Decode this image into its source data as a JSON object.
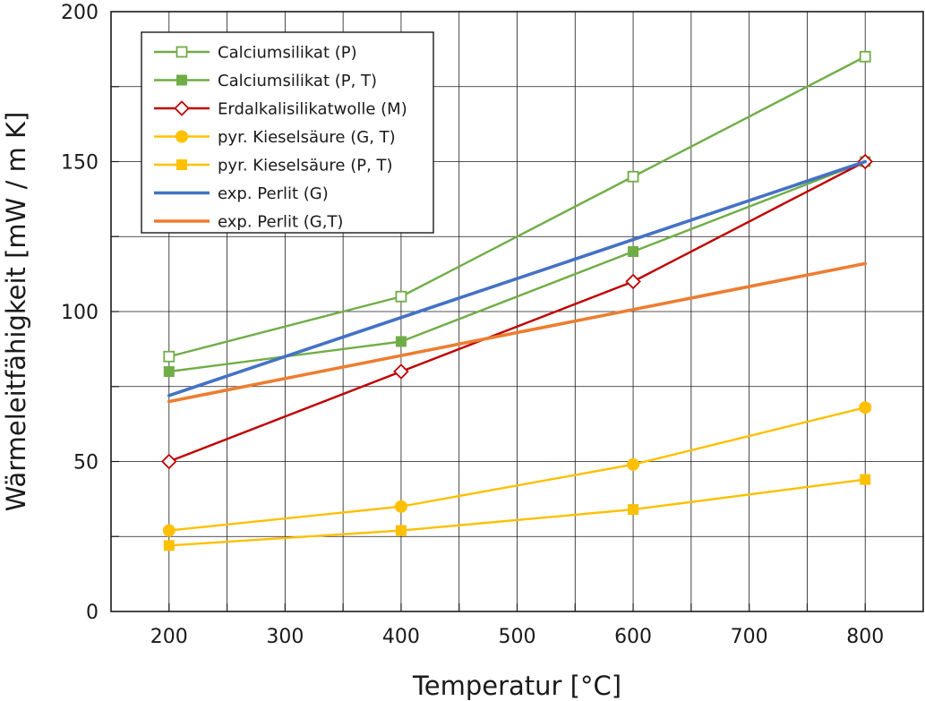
{
  "chart_data": {
    "type": "line",
    "xlabel": "Temperatur [°C]",
    "ylabel": "Wärmeleitfähigkeit [mW / m K]",
    "xlim": [
      150,
      850
    ],
    "ylim": [
      0,
      200
    ],
    "x_ticks": [
      200,
      300,
      400,
      500,
      600,
      700,
      800
    ],
    "y_ticks": [
      0,
      50,
      100,
      150,
      200
    ],
    "grid": true,
    "legend_position": "top-left",
    "series": [
      {
        "name": "Calciumsilikat (P)",
        "color": "#70ad47",
        "marker": "square-open",
        "x": [
          200,
          400,
          600,
          800
        ],
        "y": [
          85,
          105,
          145,
          185
        ]
      },
      {
        "name": "Calciumsilikat (P, T)",
        "color": "#70ad47",
        "marker": "square-filled",
        "x": [
          200,
          400,
          600,
          800
        ],
        "y": [
          80,
          90,
          120,
          150
        ]
      },
      {
        "name": "Erdalkalisilikatwolle (M)",
        "color": "#c00000",
        "marker": "diamond-open",
        "x": [
          200,
          400,
          600,
          800
        ],
        "y": [
          50,
          80,
          110,
          150
        ]
      },
      {
        "name": "pyr. Kieselsäure (G, T)",
        "color": "#ffc000",
        "marker": "circle-filled",
        "x": [
          200,
          400,
          600,
          800
        ],
        "y": [
          27,
          35,
          49,
          68
        ]
      },
      {
        "name": "pyr. Kieselsäure (P, T)",
        "color": "#ffc000",
        "marker": "square-filled",
        "x": [
          200,
          400,
          600,
          800
        ],
        "y": [
          22,
          27,
          34,
          44
        ]
      },
      {
        "name": "exp. Perlit (G)",
        "color": "#4472c4",
        "marker": "none",
        "x": [
          200,
          800
        ],
        "y": [
          72,
          150
        ]
      },
      {
        "name": "exp. Perlit (G,T)",
        "color": "#ed7d31",
        "marker": "none",
        "x": [
          200,
          800
        ],
        "y": [
          70,
          116
        ]
      }
    ]
  }
}
